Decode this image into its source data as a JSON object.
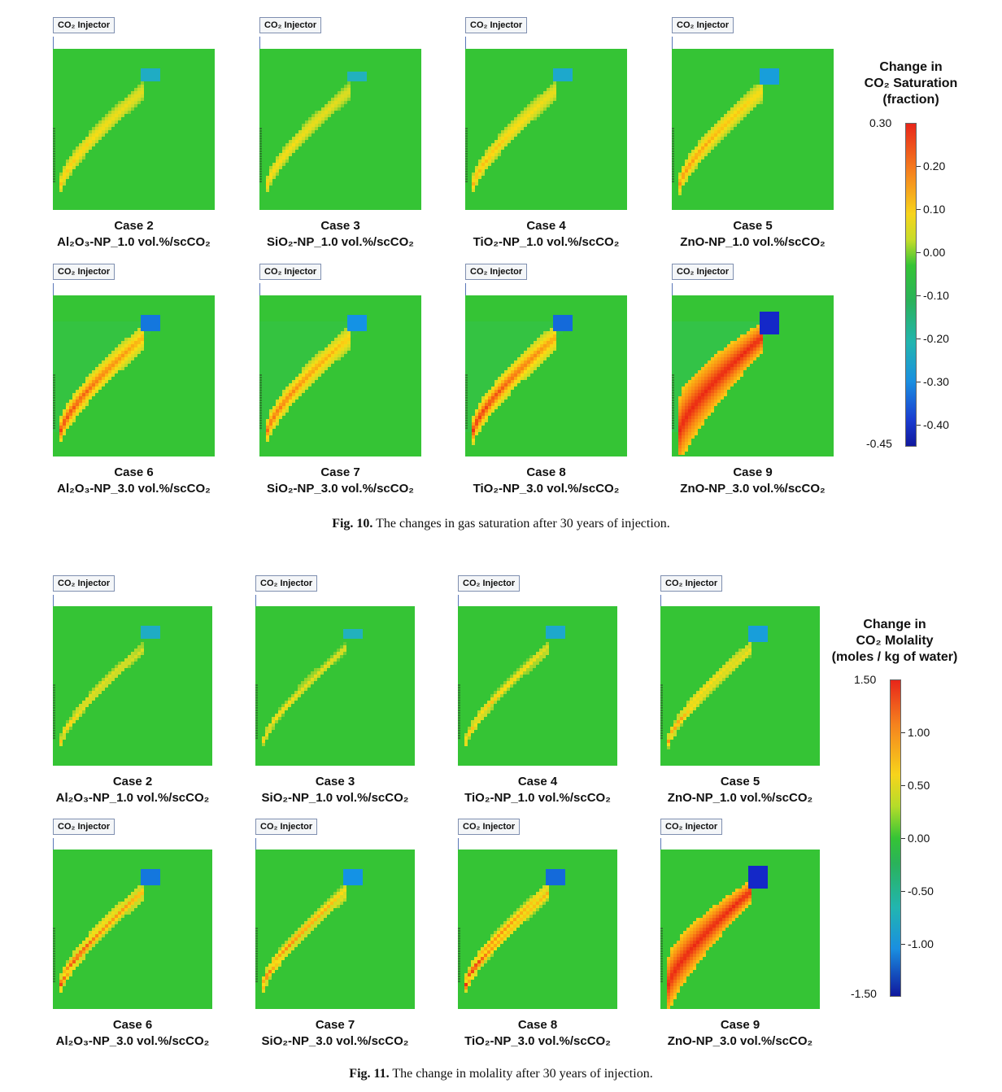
{
  "injector_label": "CO₂ Injector",
  "fig10": {
    "caption_prefix": "Fig. 10.",
    "caption_text": "The changes in gas saturation after 30 years of injection.",
    "colorbar": {
      "title": [
        "Change in",
        "CO₂ Saturation",
        "(fraction)"
      ],
      "top_label": "0.30",
      "bottom_label": "-0.45",
      "ticks": [
        "0.20",
        "0.10",
        "0.00",
        "-0.10",
        "-0.20",
        "-0.30",
        "-0.40"
      ]
    },
    "panels": [
      {
        "case": "Case 2",
        "material": "Al₂O₃-NP_1.0 vol.%/scCO₂",
        "intensity": 0.35
      },
      {
        "case": "Case 3",
        "material": "SiO₂-NP_1.0 vol.%/scCO₂",
        "intensity": 0.3
      },
      {
        "case": "Case 4",
        "material": "TiO₂-NP_1.0 vol.%/scCO₂",
        "intensity": 0.4
      },
      {
        "case": "Case 5",
        "material": "ZnO-NP_1.0 vol.%/scCO₂",
        "intensity": 0.5
      },
      {
        "case": "Case 6",
        "material": "Al₂O₃-NP_3.0 vol.%/scCO₂",
        "intensity": 0.7
      },
      {
        "case": "Case 7",
        "material": "SiO₂-NP_3.0 vol.%/scCO₂",
        "intensity": 0.6
      },
      {
        "case": "Case 8",
        "material": "TiO₂-NP_3.0 vol.%/scCO₂",
        "intensity": 0.75
      },
      {
        "case": "Case 9",
        "material": "ZnO-NP_3.0 vol.%/scCO₂",
        "intensity": 1.0
      }
    ]
  },
  "fig11": {
    "caption_prefix": "Fig. 11.",
    "caption_text": "The change in molality after 30 years of injection.",
    "colorbar": {
      "title": [
        "Change in",
        "CO₂ Molality",
        "(moles / kg of water)"
      ],
      "top_label": "1.50",
      "bottom_label": "-1.50",
      "ticks": [
        "1.00",
        "0.50",
        "0.00",
        "-0.50",
        "-1.00"
      ]
    },
    "panels": [
      {
        "case": "Case 2",
        "material": "Al₂O₃-NP_1.0 vol.%/scCO₂",
        "intensity": 0.35
      },
      {
        "case": "Case 3",
        "material": "SiO₂-NP_1.0 vol.%/scCO₂",
        "intensity": 0.3
      },
      {
        "case": "Case 4",
        "material": "TiO₂-NP_1.0 vol.%/scCO₂",
        "intensity": 0.4
      },
      {
        "case": "Case 5",
        "material": "ZnO-NP_1.0 vol.%/scCO₂",
        "intensity": 0.5
      },
      {
        "case": "Case 6",
        "material": "Al₂O₃-NP_3.0 vol.%/scCO₂",
        "intensity": 0.7
      },
      {
        "case": "Case 7",
        "material": "SiO₂-NP_3.0 vol.%/scCO₂",
        "intensity": 0.6
      },
      {
        "case": "Case 8",
        "material": "TiO₂-NP_3.0 vol.%/scCO₂",
        "intensity": 0.75
      },
      {
        "case": "Case 9",
        "material": "ZnO-NP_3.0 vol.%/scCO₂",
        "intensity": 1.0
      }
    ]
  }
}
